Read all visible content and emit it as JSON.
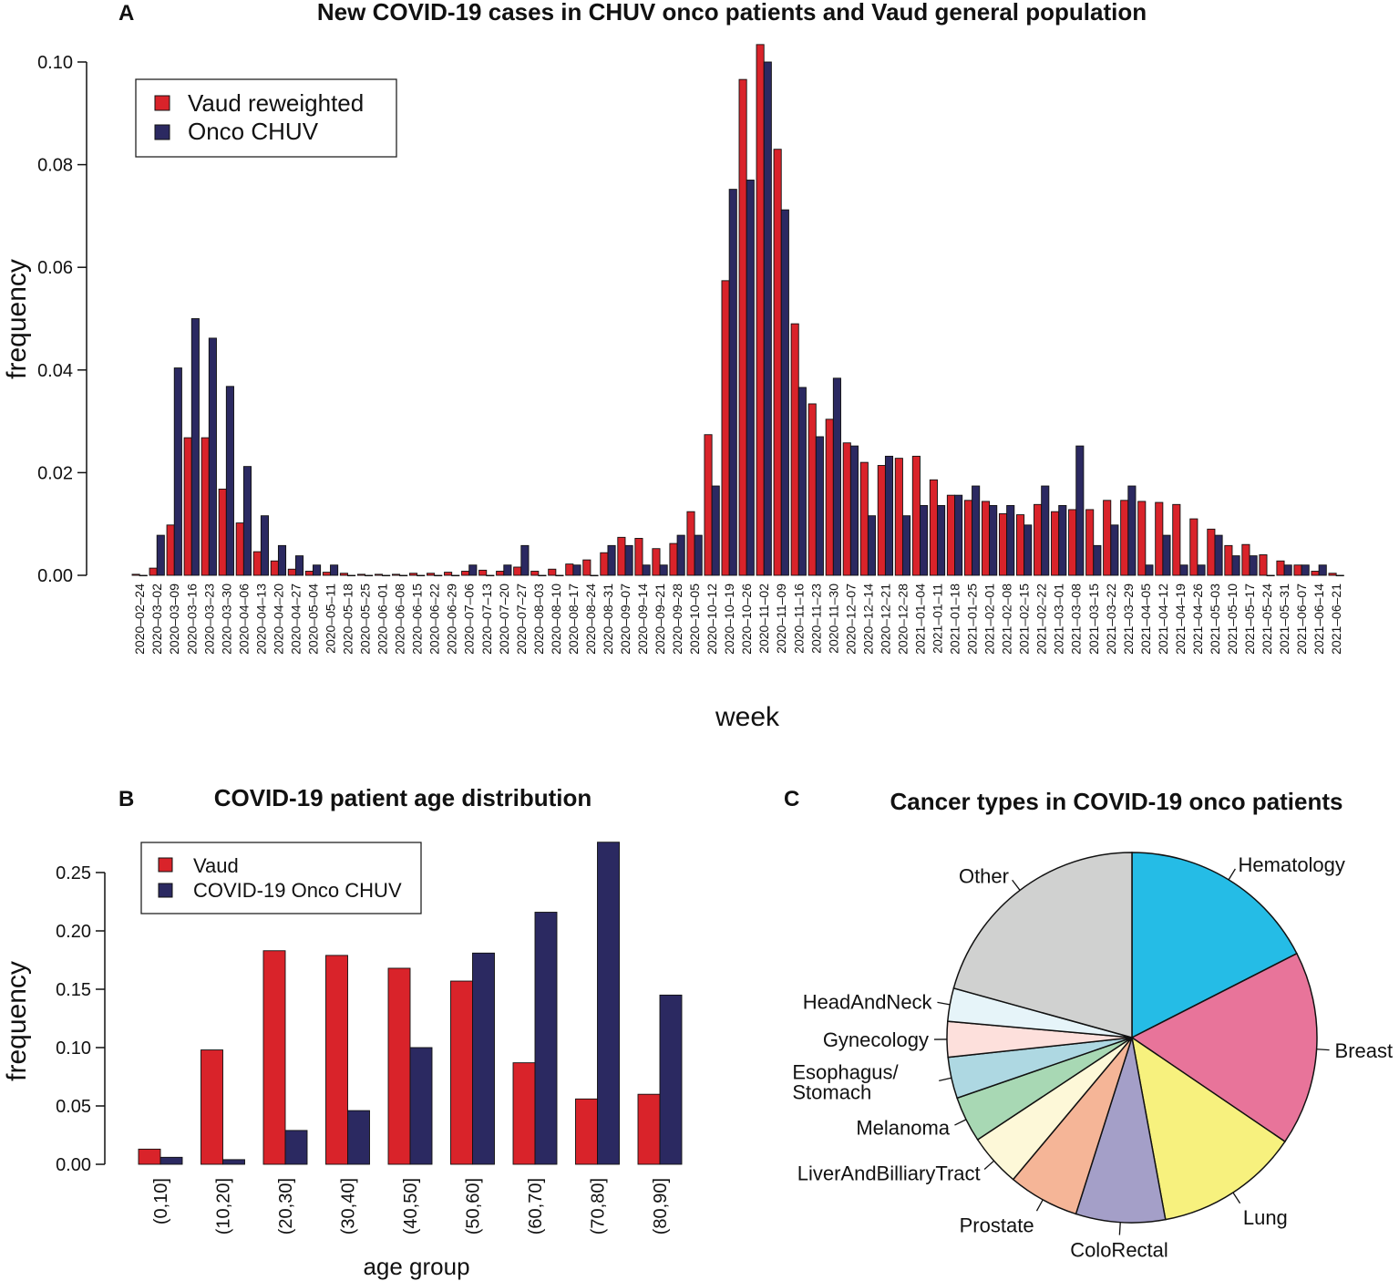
{
  "colors": {
    "red": "#d9232a",
    "blue": "#2b2961"
  },
  "chart_data": [
    {
      "id": "A",
      "type": "bar",
      "panel_label": "A",
      "title": "New COVID-19 cases in CHUV onco patients and Vaud general population",
      "xlabel": "week",
      "ylabel": "frequency",
      "ylim": [
        0,
        0.104
      ],
      "yticks": [
        "0.00",
        "0.02",
        "0.04",
        "0.06",
        "0.08",
        "0.10"
      ],
      "legend": [
        "Vaud reweighted",
        "Onco CHUV"
      ],
      "legend_position": "top-left",
      "categories": [
        "2020-02-24",
        "2020-03-02",
        "2020-03-09",
        "2020-03-16",
        "2020-03-23",
        "2020-03-30",
        "2020-04-06",
        "2020-04-13",
        "2020-04-20",
        "2020-04-27",
        "2020-05-04",
        "2020-05-11",
        "2020-05-18",
        "2020-05-25",
        "2020-06-01",
        "2020-06-08",
        "2020-06-15",
        "2020-06-22",
        "2020-06-29",
        "2020-07-06",
        "2020-07-13",
        "2020-07-20",
        "2020-07-27",
        "2020-08-03",
        "2020-08-10",
        "2020-08-17",
        "2020-08-24",
        "2020-08-31",
        "2020-09-07",
        "2020-09-14",
        "2020-09-21",
        "2020-09-28",
        "2020-10-05",
        "2020-10-12",
        "2020-10-19",
        "2020-10-26",
        "2020-11-02",
        "2020-11-09",
        "2020-11-16",
        "2020-11-23",
        "2020-11-30",
        "2020-12-07",
        "2020-12-14",
        "2020-12-21",
        "2020-12-28",
        "2021-01-04",
        "2021-01-11",
        "2021-01-18",
        "2021-01-25",
        "2021-02-01",
        "2021-02-08",
        "2021-02-15",
        "2021-02-22",
        "2021-03-01",
        "2021-03-08",
        "2021-03-15",
        "2021-03-22",
        "2021-03-29",
        "2021-04-05",
        "2021-04-12",
        "2021-04-19",
        "2021-04-26",
        "2021-05-03",
        "2021-05-10",
        "2021-05-17",
        "2021-05-24",
        "2021-05-31",
        "2021-06-07",
        "2021-06-14",
        "2021-06-21"
      ],
      "series": [
        {
          "name": "Vaud reweighted",
          "values": [
            0.0002,
            0.0014,
            0.0098,
            0.0268,
            0.0268,
            0.0168,
            0.0102,
            0.0046,
            0.0028,
            0.0012,
            0.0008,
            0.0006,
            0.0004,
            0.0002,
            0.0002,
            0.0002,
            0.0004,
            0.0004,
            0.0006,
            0.0008,
            0.001,
            0.0008,
            0.0016,
            0.0008,
            0.0012,
            0.0022,
            0.003,
            0.0044,
            0.0074,
            0.0072,
            0.0052,
            0.0062,
            0.0124,
            0.0274,
            0.0574,
            0.0966,
            0.1034,
            0.083,
            0.049,
            0.0334,
            0.0304,
            0.0258,
            0.022,
            0.0214,
            0.0228,
            0.0232,
            0.0186,
            0.0156,
            0.0146,
            0.0144,
            0.012,
            0.0118,
            0.0138,
            0.0124,
            0.0128,
            0.0128,
            0.0146,
            0.0146,
            0.0144,
            0.0142,
            0.0138,
            0.011,
            0.009,
            0.0058,
            0.006,
            0.004,
            0.0028,
            0.002,
            0.0008,
            0.0004
          ]
        },
        {
          "name": "Onco CHUV",
          "values": [
            0,
            0.0078,
            0.0404,
            0.05,
            0.0462,
            0.0368,
            0.0212,
            0.0116,
            0.0058,
            0.0038,
            0.002,
            0.002,
            0,
            0,
            0,
            0,
            0,
            0,
            0,
            0.002,
            0,
            0.002,
            0.0058,
            0,
            0,
            0.002,
            0,
            0.0058,
            0.0058,
            0.002,
            0.002,
            0.0078,
            0.0078,
            0.0174,
            0.0752,
            0.077,
            0.1,
            0.0712,
            0.0366,
            0.027,
            0.0384,
            0.0252,
            0.0116,
            0.0232,
            0.0116,
            0.0136,
            0.0136,
            0.0156,
            0.0174,
            0.0136,
            0.0136,
            0.0098,
            0.0174,
            0.0136,
            0.0252,
            0.0058,
            0.0098,
            0.0174,
            0.002,
            0.0078,
            0.002,
            0.002,
            0.0078,
            0.0038,
            0.0038,
            0,
            0.002,
            0.002,
            0.002,
            0
          ]
        }
      ]
    },
    {
      "id": "B",
      "type": "bar",
      "panel_label": "B",
      "title": "COVID-19 patient age distribution",
      "xlabel": "age group",
      "ylabel": "frequency",
      "ylim": [
        0,
        0.276
      ],
      "yticks": [
        "0.00",
        "0.05",
        "0.10",
        "0.15",
        "0.20",
        "0.25"
      ],
      "legend": [
        "Vaud",
        "COVID-19 Onco CHUV"
      ],
      "legend_position": "top-left",
      "categories": [
        "(0,10]",
        "(10,20]",
        "(20,30]",
        "(30,40]",
        "(40,50]",
        "(50,60]",
        "(60,70]",
        "(70,80]",
        "(80,90]"
      ],
      "series": [
        {
          "name": "Vaud",
          "values": [
            0.013,
            0.098,
            0.183,
            0.179,
            0.168,
            0.157,
            0.087,
            0.056,
            0.06
          ]
        },
        {
          "name": "COVID-19 Onco CHUV",
          "values": [
            0.006,
            0.004,
            0.029,
            0.046,
            0.1,
            0.181,
            0.216,
            0.276,
            0.145
          ]
        }
      ]
    },
    {
      "id": "C",
      "type": "pie",
      "panel_label": "C",
      "title": "Cancer types in COVID-19 onco patients",
      "slices": [
        {
          "label": "Hematology",
          "value": 17.5,
          "color": "#25bce6"
        },
        {
          "label": "Breast",
          "value": 17.0,
          "color": "#e8749a"
        },
        {
          "label": "Lung",
          "value": 12.6,
          "color": "#f7f17e"
        },
        {
          "label": "ColoRectal",
          "value": 7.8,
          "color": "#a49fc8"
        },
        {
          "label": "Prostate",
          "value": 6.2,
          "color": "#f5b597"
        },
        {
          "label": "LiverAndBilliaryTract",
          "value": 4.6,
          "color": "#fdf8d8"
        },
        {
          "label": "Melanoma",
          "value": 4.0,
          "color": "#a8d8b4"
        },
        {
          "label": "Esophagus/\nStomach",
          "value": 3.6,
          "color": "#aed8e2"
        },
        {
          "label": "Gynecology",
          "value": 3.1,
          "color": "#fde0dc"
        },
        {
          "label": "HeadAndNeck",
          "value": 2.9,
          "color": "#e6f4f9"
        },
        {
          "label": "Other",
          "value": 20.7,
          "color": "#d0d1d0"
        }
      ]
    }
  ]
}
